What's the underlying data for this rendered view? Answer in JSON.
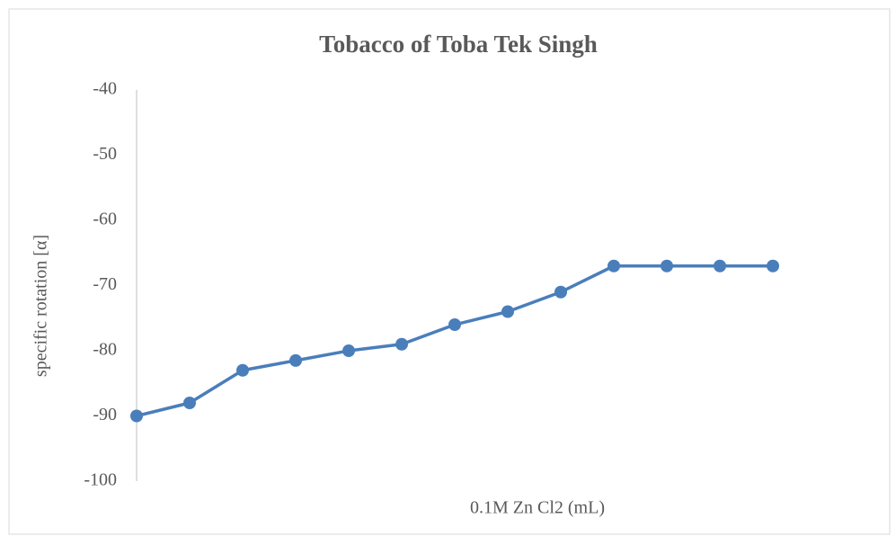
{
  "chart_data": {
    "type": "line",
    "title": "Tobacco of Toba Tek Singh",
    "x_label": "0.1M Zn Cl2 (mL)",
    "y_label": "specific rotation [α]",
    "categories": [
      null,
      null,
      null,
      null,
      null,
      null,
      null,
      null,
      null,
      null,
      null,
      null,
      null
    ],
    "series": [
      {
        "name": null,
        "color": "#4a7ebb",
        "values": [
          -90,
          -88,
          -83,
          -81.5,
          -80,
          -79,
          -76,
          -74,
          -71,
          -67,
          -67,
          -67,
          -67
        ]
      }
    ],
    "ylim": [
      -100,
      -40
    ],
    "yticks": [
      -100,
      -90,
      -80,
      -70,
      -60,
      -50,
      -40
    ],
    "grid": false
  }
}
